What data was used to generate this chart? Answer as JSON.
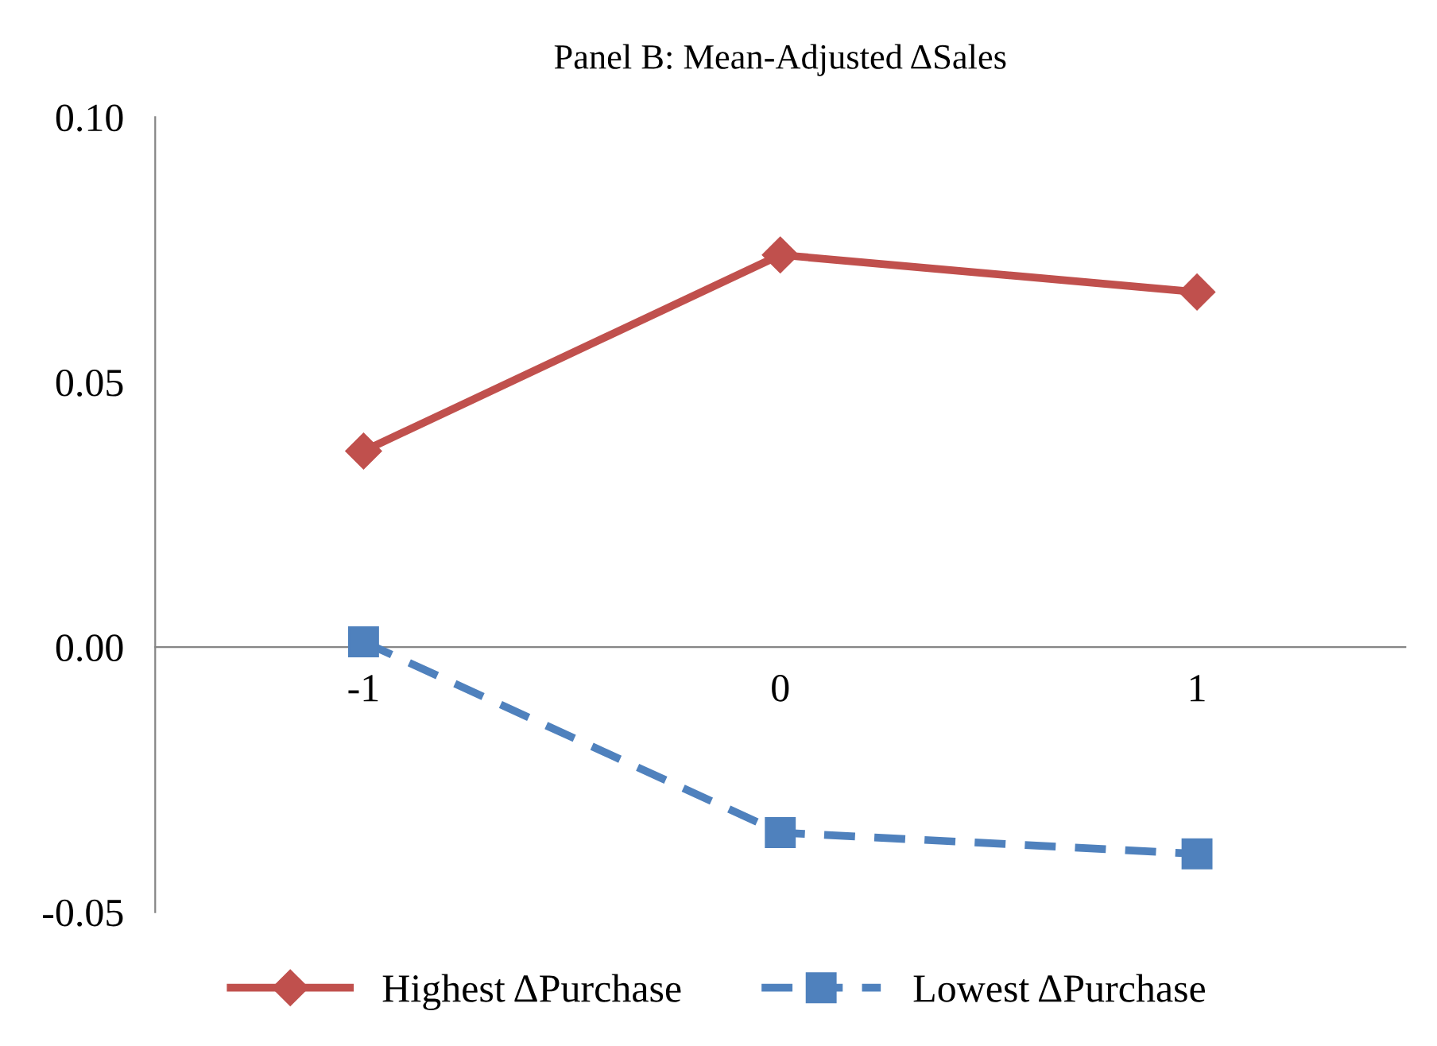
{
  "chart_data": {
    "type": "line",
    "title": "Panel B: Mean-Adjusted ΔSales",
    "categories": [
      "-1",
      "0",
      "1"
    ],
    "series": [
      {
        "name": "Highest ΔPurchase",
        "color": "#c0504d",
        "values": [
          0.037,
          0.074,
          0.067
        ],
        "marker": "diamond",
        "line_style": "solid"
      },
      {
        "name": "Lowest ΔPurchase",
        "color": "#4f81bd",
        "values": [
          0.001,
          -0.035,
          -0.039
        ],
        "marker": "square",
        "line_style": "dashed"
      }
    ],
    "ylim": [
      -0.05,
      0.1
    ],
    "yticks": [
      {
        "value": -0.05,
        "label": "-0.05"
      },
      {
        "value": 0.0,
        "label": "0.00"
      },
      {
        "value": 0.05,
        "label": "0.05"
      },
      {
        "value": 0.1,
        "label": "0.10"
      }
    ],
    "grid": false,
    "legend": "bottom"
  }
}
